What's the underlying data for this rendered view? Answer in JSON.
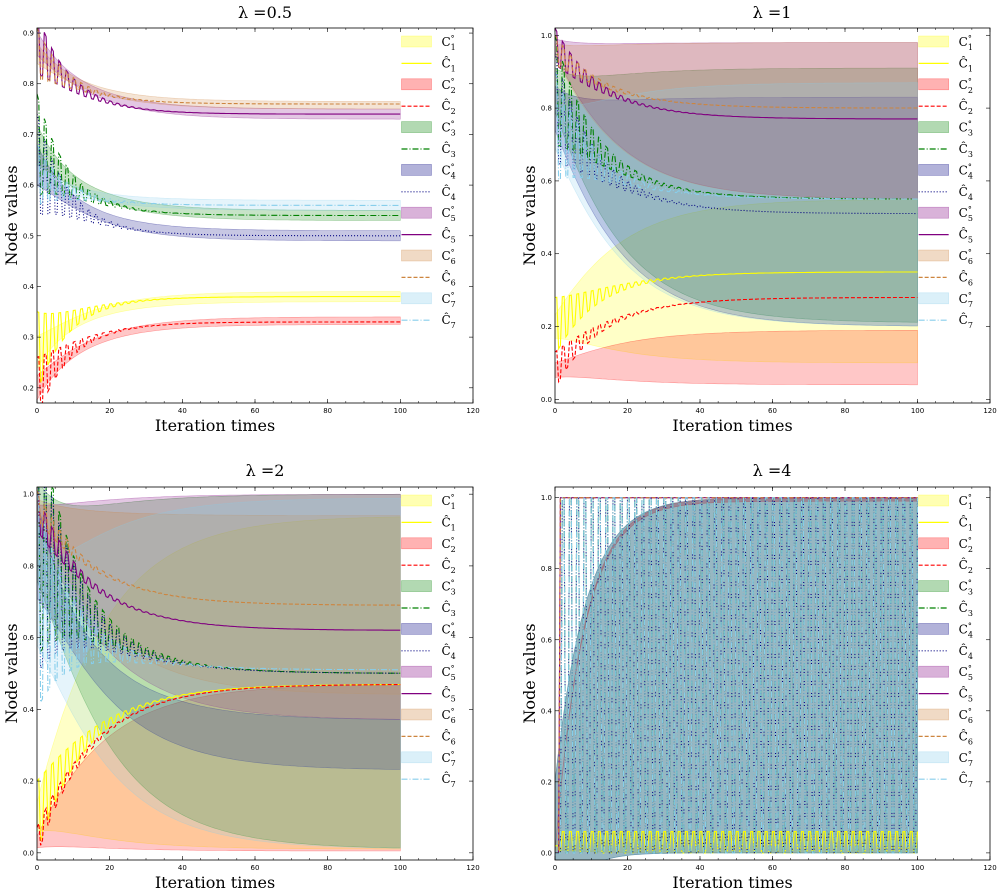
{
  "figure": {
    "type": "line-with-bands",
    "panels": 4
  },
  "legend_entries": [
    {
      "label": "C",
      "sub": "1",
      "sup": "°",
      "kind": "band",
      "color": "#ffff00"
    },
    {
      "label": "Ĉ",
      "sub": "1",
      "sup": "",
      "kind": "line",
      "color": "#ffff00",
      "dash": ""
    },
    {
      "label": "C",
      "sub": "2",
      "sup": "°",
      "kind": "band",
      "color": "#ff0000"
    },
    {
      "label": "Ĉ",
      "sub": "2",
      "sup": "",
      "kind": "line",
      "color": "#ff0000",
      "dash": "4,2"
    },
    {
      "label": "C",
      "sub": "3",
      "sup": "°",
      "kind": "band",
      "color": "#008000"
    },
    {
      "label": "Ĉ",
      "sub": "3",
      "sup": "",
      "kind": "line",
      "color": "#008000",
      "dash": "6,2,1,2"
    },
    {
      "label": "C",
      "sub": "4",
      "sup": "°",
      "kind": "band",
      "color": "#000080"
    },
    {
      "label": "Ĉ",
      "sub": "4",
      "sup": "",
      "kind": "line",
      "color": "#000080",
      "dash": "1,2"
    },
    {
      "label": "C",
      "sub": "5",
      "sup": "°",
      "kind": "band",
      "color": "#800080"
    },
    {
      "label": "Ĉ",
      "sub": "5",
      "sup": "",
      "kind": "line",
      "color": "#800080",
      "dash": ""
    },
    {
      "label": "C",
      "sub": "6",
      "sup": "°",
      "kind": "band",
      "color": "#cd853f"
    },
    {
      "label": "Ĉ",
      "sub": "6",
      "sup": "",
      "kind": "line",
      "color": "#cd853f",
      "dash": "4,2"
    },
    {
      "label": "C",
      "sub": "7",
      "sup": "°",
      "kind": "band",
      "color": "#87ceeb"
    },
    {
      "label": "Ĉ",
      "sub": "7",
      "sup": "",
      "kind": "line",
      "color": "#87ceeb",
      "dash": "6,2,1,2"
    }
  ],
  "chart_data": [
    {
      "type": "line",
      "title": "λ =0.5",
      "xlabel": "Iteration times",
      "ylabel": "Node values",
      "xlim": [
        0,
        120
      ],
      "ylim": [
        0.17,
        0.91
      ],
      "xticks": [
        0,
        20,
        40,
        60,
        80,
        100,
        120
      ],
      "yticks": [
        0.2,
        0.3,
        0.4,
        0.5,
        0.6,
        0.7,
        0.8,
        0.9
      ],
      "ytick_labels": [
        "0.2",
        "0.3",
        "0.4",
        "0.5",
        "0.6",
        "0.7",
        "0.8",
        "0.9"
      ],
      "x_end": 100,
      "series": [
        {
          "name": "C1",
          "start": 0.27,
          "final": 0.38,
          "band": [
            0.37,
            0.39
          ],
          "osc": 0.08,
          "damp": 0.6
        },
        {
          "name": "C2",
          "start": 0.2,
          "final": 0.33,
          "band": [
            0.325,
            0.34
          ],
          "osc": 0.06,
          "damp": 0.6
        },
        {
          "name": "C3",
          "start": 0.68,
          "final": 0.54,
          "band": [
            0.53,
            0.55
          ],
          "osc": 0.1,
          "damp": 0.6
        },
        {
          "name": "C4",
          "start": 0.64,
          "final": 0.5,
          "band": [
            0.49,
            0.51
          ],
          "osc": 0.1,
          "damp": 0.6
        },
        {
          "name": "C5",
          "start": 0.88,
          "final": 0.74,
          "band": [
            0.73,
            0.75
          ],
          "osc": 0.06,
          "damp": 0.6
        },
        {
          "name": "C6",
          "start": 0.86,
          "final": 0.76,
          "band": [
            0.75,
            0.765
          ],
          "osc": 0.05,
          "damp": 0.6
        },
        {
          "name": "C7",
          "start": 0.62,
          "final": 0.56,
          "band": [
            0.55,
            0.57
          ],
          "osc": 0.06,
          "damp": 0.6
        }
      ]
    },
    {
      "type": "line",
      "title": "λ =1",
      "xlabel": "Iteration times",
      "ylabel": "Node values",
      "xlim": [
        0,
        120
      ],
      "ylim": [
        -0.01,
        1.02
      ],
      "xticks": [
        0,
        20,
        40,
        60,
        80,
        100,
        120
      ],
      "yticks": [
        0.0,
        0.2,
        0.4,
        0.6,
        0.8,
        1.0
      ],
      "ytick_labels": [
        "0.0",
        "0.2",
        "0.4",
        "0.6",
        "0.8",
        "1.0"
      ],
      "x_end": 100,
      "series": [
        {
          "name": "C1",
          "start": 0.2,
          "final": 0.35,
          "band": [
            0.1,
            0.55
          ],
          "osc": 0.08,
          "damp": 0.9
        },
        {
          "name": "C2",
          "start": 0.08,
          "final": 0.28,
          "band": [
            0.04,
            0.19
          ],
          "osc": 0.05,
          "damp": 0.9
        },
        {
          "name": "C3",
          "start": 0.85,
          "final": 0.55,
          "band": [
            0.21,
            0.91
          ],
          "osc": 0.15,
          "damp": 0.9
        },
        {
          "name": "C4",
          "start": 0.8,
          "final": 0.51,
          "band": [
            0.2,
            0.83
          ],
          "osc": 0.15,
          "damp": 0.9
        },
        {
          "name": "C5",
          "start": 0.97,
          "final": 0.77,
          "band": [
            0.55,
            0.98
          ],
          "osc": 0.05,
          "damp": 0.9
        },
        {
          "name": "C6",
          "start": 0.96,
          "final": 0.8,
          "band": [
            0.55,
            0.98
          ],
          "osc": 0.04,
          "damp": 0.9
        },
        {
          "name": "C7",
          "start": 0.75,
          "final": 0.55,
          "band": [
            0.2,
            0.87
          ],
          "osc": 0.15,
          "damp": 0.9
        }
      ]
    },
    {
      "type": "line",
      "title": "λ =2",
      "xlabel": "Iteration times",
      "ylabel": "Node values",
      "xlim": [
        0,
        120
      ],
      "ylim": [
        -0.02,
        1.02
      ],
      "xticks": [
        0,
        20,
        40,
        60,
        80,
        100,
        120
      ],
      "yticks": [
        0.0,
        0.2,
        0.4,
        0.6,
        0.8,
        1.0
      ],
      "ytick_labels": [
        "0.0",
        "0.2",
        "0.4",
        "0.6",
        "0.8",
        "1.0"
      ],
      "x_end": 100,
      "series": [
        {
          "name": "C1",
          "start": 0.1,
          "final": 0.47,
          "band": [
            0.01,
            0.94
          ],
          "osc": 0.1,
          "damp": 1.0
        },
        {
          "name": "C2",
          "start": 0.03,
          "final": 0.47,
          "band": [
            0.005,
            0.47
          ],
          "osc": 0.04,
          "damp": 1.0
        },
        {
          "name": "C3",
          "start": 0.9,
          "final": 0.5,
          "band": [
            0.01,
            1.0
          ],
          "osc": 0.35,
          "damp": 1.0
        },
        {
          "name": "C4",
          "start": 0.85,
          "final": 0.5,
          "band": [
            0.23,
            0.37
          ],
          "osc": 0.35,
          "damp": 1.0
        },
        {
          "name": "C5",
          "start": 0.95,
          "final": 0.62,
          "band": [
            0.37,
            1.0
          ],
          "osc": 0.05,
          "damp": 1.0
        },
        {
          "name": "C6",
          "start": 0.97,
          "final": 0.69,
          "band": [
            0.44,
            0.94
          ],
          "osc": 0.04,
          "damp": 1.0
        },
        {
          "name": "C7",
          "start": 0.7,
          "final": 0.51,
          "band": [
            0.01,
            0.99
          ],
          "osc": 0.3,
          "damp": 1.0
        }
      ]
    },
    {
      "type": "line",
      "title": "λ =4",
      "xlabel": "Iteration times",
      "ylabel": "Node values",
      "xlim": [
        0,
        120
      ],
      "ylim": [
        -0.02,
        1.03
      ],
      "xticks": [
        0,
        20,
        40,
        60,
        80,
        100,
        120
      ],
      "yticks": [
        0.0,
        0.2,
        0.4,
        0.6,
        0.8,
        1.0
      ],
      "ytick_labels": [
        "0.0",
        "0.2",
        "0.4",
        "0.6",
        "0.8",
        "1.0"
      ],
      "x_end": 100,
      "series": [
        {
          "name": "C1",
          "start": 0.02,
          "final": 0.03,
          "band": [
            0.0,
            0.06
          ],
          "osc": 0.03,
          "damp": 0.0
        },
        {
          "name": "C2",
          "start": 0.0,
          "final": 1.0,
          "band": [
            0.99,
            1.0
          ],
          "osc": 0.0,
          "damp": 0.0
        },
        {
          "name": "C3",
          "start": 0.0,
          "final": 0.5,
          "band": [
            0.0,
            1.0
          ],
          "osc": 0.5,
          "damp": 0.0
        },
        {
          "name": "C4",
          "start": 0.0,
          "final": 0.5,
          "band": [
            0.0,
            1.0
          ],
          "osc": 0.5,
          "damp": 0.0
        },
        {
          "name": "C5",
          "start": 0.0,
          "final": 1.0,
          "band": [
            0.99,
            1.0
          ],
          "osc": 0.0,
          "damp": 0.0
        },
        {
          "name": "C6",
          "start": 0.0,
          "final": 1.0,
          "band": [
            0.99,
            1.0
          ],
          "osc": 0.0,
          "damp": 0.0
        },
        {
          "name": "C7",
          "start": 0.0,
          "final": 0.5,
          "band": [
            0.0,
            1.0
          ],
          "osc": 0.5,
          "damp": 0.0
        }
      ]
    }
  ]
}
